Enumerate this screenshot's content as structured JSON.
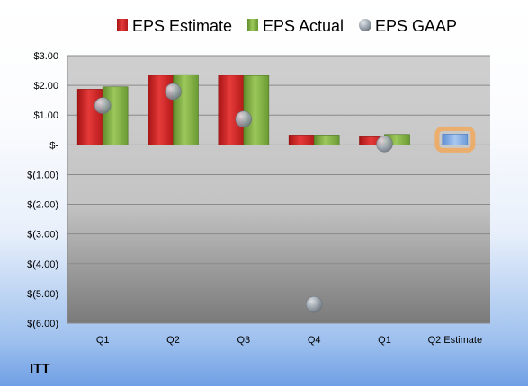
{
  "chart_data": {
    "type": "bar",
    "ticker": "ITT",
    "categories": [
      "Q1",
      "Q2",
      "Q3",
      "Q4",
      "Q1",
      "Q2 Estimate"
    ],
    "y_tick_labels": [
      "$3.00",
      "$2.00",
      "$1.00",
      "$-",
      "$(1.00)",
      "$(2.00)",
      "$(3.00)",
      "$(4.00)",
      "$(5.00)",
      "$(6.00)"
    ],
    "ylim": [
      -6,
      3
    ],
    "legend_position": "top",
    "series": [
      {
        "name": "EPS Estimate",
        "type": "bar",
        "color": "#d42a2a",
        "values": [
          1.87,
          2.34,
          2.34,
          0.33,
          0.27,
          null
        ]
      },
      {
        "name": "EPS Actual",
        "type": "bar",
        "color": "#84b34a",
        "values": [
          1.95,
          2.36,
          2.33,
          0.33,
          0.35,
          null
        ]
      },
      {
        "name": "EPS GAAP",
        "type": "scatter",
        "color": "#9aa3ad",
        "values": [
          1.32,
          1.79,
          0.86,
          -5.37,
          0.03,
          null
        ]
      },
      {
        "name": "Q2 Estimate",
        "type": "bar",
        "color": "#8cb5e8",
        "highlight_color": "#f5a44c",
        "values": [
          null,
          null,
          null,
          null,
          null,
          0.36
        ]
      }
    ]
  }
}
